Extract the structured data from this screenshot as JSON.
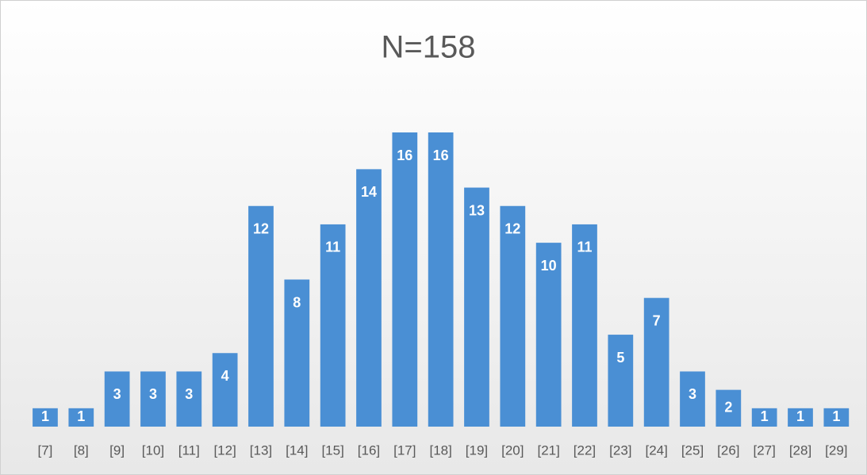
{
  "chart_data": {
    "type": "bar",
    "title": "N=158",
    "categories": [
      "[7]",
      "[8]",
      "[9]",
      "[10]",
      "[11]",
      "[12]",
      "[13]",
      "[14]",
      "[15]",
      "[16]",
      "[17]",
      "[18]",
      "[19]",
      "[20]",
      "[21]",
      "[22]",
      "[23]",
      "[24]",
      "[25]",
      "[26]",
      "[27]",
      "[28]",
      "[29]"
    ],
    "values": [
      1,
      1,
      3,
      3,
      3,
      4,
      12,
      8,
      11,
      14,
      16,
      16,
      13,
      12,
      10,
      11,
      5,
      7,
      3,
      2,
      1,
      1,
      1
    ],
    "color": "#4a8fd4",
    "ylim": [
      0,
      16
    ]
  }
}
